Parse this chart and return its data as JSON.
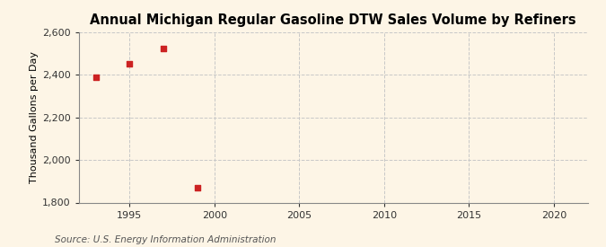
{
  "title": "Annual Michigan Regular Gasoline DTW Sales Volume by Refiners",
  "ylabel": "Thousand Gallons per Day",
  "source": "Source: U.S. Energy Information Administration",
  "background_color": "#fdf5e6",
  "data_points": {
    "x": [
      1993,
      1995,
      1997,
      1999
    ],
    "y": [
      2390,
      2450,
      2525,
      1870
    ]
  },
  "marker_color": "#cc2222",
  "marker_size": 22,
  "xlim": [
    1992,
    2022
  ],
  "ylim": [
    1800,
    2600
  ],
  "xticks": [
    1995,
    2000,
    2005,
    2010,
    2015,
    2020
  ],
  "yticks": [
    1800,
    2000,
    2200,
    2400,
    2600
  ],
  "ytick_labels": [
    "1,800",
    "2,000",
    "2,200",
    "2,400",
    "2,600"
  ],
  "grid_color": "#c8c8c8",
  "grid_style": "--",
  "title_fontsize": 10.5,
  "label_fontsize": 8,
  "tick_fontsize": 8,
  "source_fontsize": 7.5
}
